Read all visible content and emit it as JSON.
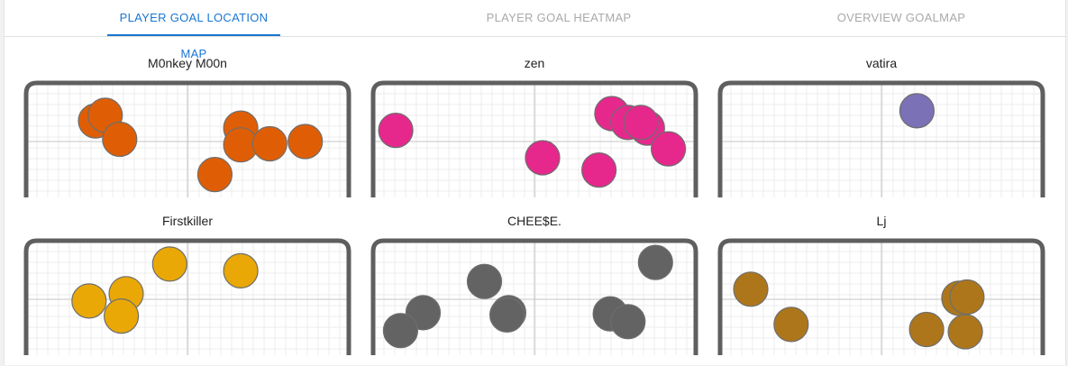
{
  "tabs": [
    {
      "label": "PLAYER GOAL LOCATION MAP",
      "active": true
    },
    {
      "label": "PLAYER GOAL HEATMAP",
      "active": false
    },
    {
      "label": "OVERVIEW GOALMAP",
      "active": false
    }
  ],
  "chart_data": [
    {
      "type": "scatter",
      "title": "M0nkey M00n",
      "color": "#df5e05",
      "xlim": [
        -1,
        1
      ],
      "ylim": [
        -1,
        1
      ],
      "points": [
        {
          "x": -0.57,
          "y": 0.37
        },
        {
          "x": -0.51,
          "y": 0.47
        },
        {
          "x": -0.42,
          "y": 0.04
        },
        {
          "x": 0.33,
          "y": 0.24
        },
        {
          "x": 0.33,
          "y": -0.06
        },
        {
          "x": 0.51,
          "y": -0.04
        },
        {
          "x": 0.73,
          "y": 0.0
        },
        {
          "x": 0.17,
          "y": -0.59
        }
      ]
    },
    {
      "type": "scatter",
      "title": "zen",
      "color": "#e6288c",
      "xlim": [
        -1,
        1
      ],
      "ylim": [
        -1,
        1
      ],
      "points": [
        {
          "x": -0.86,
          "y": 0.2
        },
        {
          "x": 0.05,
          "y": -0.29
        },
        {
          "x": 0.48,
          "y": 0.5
        },
        {
          "x": 0.58,
          "y": 0.34
        },
        {
          "x": 0.7,
          "y": 0.24
        },
        {
          "x": 0.66,
          "y": 0.34
        },
        {
          "x": 0.83,
          "y": -0.13
        },
        {
          "x": 0.4,
          "y": -0.51
        }
      ]
    },
    {
      "type": "scatter",
      "title": "vatira",
      "color": "#7b71b7",
      "xlim": [
        -1,
        1
      ],
      "ylim": [
        -1,
        1
      ],
      "points": [
        {
          "x": 0.22,
          "y": 0.55
        }
      ]
    },
    {
      "type": "scatter",
      "title": "Firstkiller",
      "color": "#e9a805",
      "xlim": [
        -1,
        1
      ],
      "ylim": [
        -1,
        1
      ],
      "points": [
        {
          "x": -0.11,
          "y": 0.63
        },
        {
          "x": 0.33,
          "y": 0.51
        },
        {
          "x": -0.38,
          "y": 0.1
        },
        {
          "x": -0.61,
          "y": -0.03
        },
        {
          "x": -0.41,
          "y": -0.3
        }
      ]
    },
    {
      "type": "scatter",
      "title": "CHEE$E.",
      "color": "#636363",
      "xlim": [
        -1,
        1
      ],
      "ylim": [
        -1,
        1
      ],
      "points": [
        {
          "x": 0.75,
          "y": 0.66
        },
        {
          "x": -0.31,
          "y": 0.32
        },
        {
          "x": -0.16,
          "y": -0.24
        },
        {
          "x": -0.17,
          "y": -0.28
        },
        {
          "x": 0.47,
          "y": -0.26
        },
        {
          "x": 0.58,
          "y": -0.4
        },
        {
          "x": -0.69,
          "y": -0.24
        },
        {
          "x": -0.83,
          "y": -0.56
        }
      ]
    },
    {
      "type": "scatter",
      "title": "Lj",
      "color": "#ae761b",
      "xlim": [
        -1,
        1
      ],
      "ylim": [
        -1,
        1
      ],
      "points": [
        {
          "x": -0.81,
          "y": 0.18
        },
        {
          "x": -0.56,
          "y": -0.45
        },
        {
          "x": 0.48,
          "y": 0.02
        },
        {
          "x": 0.53,
          "y": 0.04
        },
        {
          "x": 0.28,
          "y": -0.54
        },
        {
          "x": 0.52,
          "y": -0.58
        }
      ]
    }
  ]
}
